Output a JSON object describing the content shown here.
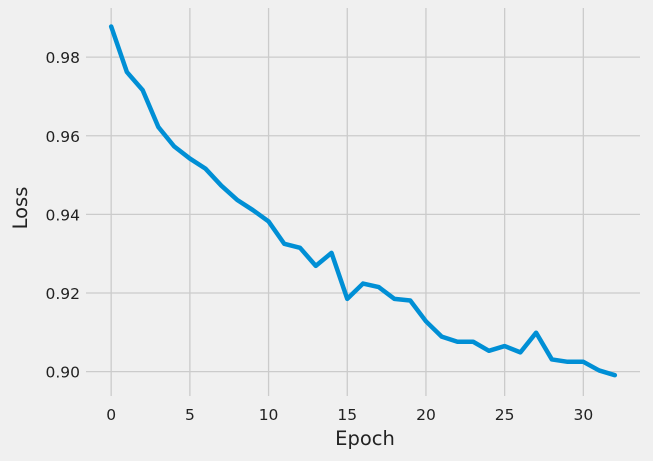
{
  "chart_data": {
    "type": "line",
    "title": "",
    "xlabel": "Epoch",
    "ylabel": "Loss",
    "xlim": [
      -1.6,
      33.6
    ],
    "ylim": [
      0.8938,
      0.9925
    ],
    "xticks": [
      0,
      5,
      10,
      15,
      20,
      25,
      30
    ],
    "xtick_labels": [
      "0",
      "5",
      "10",
      "15",
      "20",
      "25",
      "30"
    ],
    "yticks": [
      0.9,
      0.92,
      0.94,
      0.96,
      0.98
    ],
    "ytick_labels": [
      "0.90",
      "0.92",
      "0.94",
      "0.96",
      "0.98"
    ],
    "grid": true,
    "legend": "none",
    "style": "fivethirtyeight",
    "colors": {
      "background": "#f0f0f0",
      "grid": "#cbcbcb",
      "series": "#008fd5"
    },
    "series": [
      {
        "color": "#008fd5",
        "x": [
          0,
          1,
          2,
          3,
          4,
          5,
          6,
          7,
          8,
          9,
          10,
          11,
          12,
          13,
          14,
          15,
          16,
          17,
          18,
          19,
          20,
          21,
          22,
          23,
          24,
          25,
          26,
          27,
          28,
          29,
          30,
          31,
          32
        ],
        "y": [
          0.9878,
          0.9762,
          0.9716,
          0.9622,
          0.9573,
          0.9542,
          0.9516,
          0.9473,
          0.9437,
          0.9411,
          0.9382,
          0.9325,
          0.9315,
          0.9269,
          0.9302,
          0.9185,
          0.9224,
          0.9215,
          0.9185,
          0.9181,
          0.9128,
          0.9089,
          0.9076,
          0.9076,
          0.9053,
          0.9065,
          0.9049,
          0.9099,
          0.9031,
          0.9025,
          0.9025,
          0.9003,
          0.8991
        ]
      }
    ]
  }
}
